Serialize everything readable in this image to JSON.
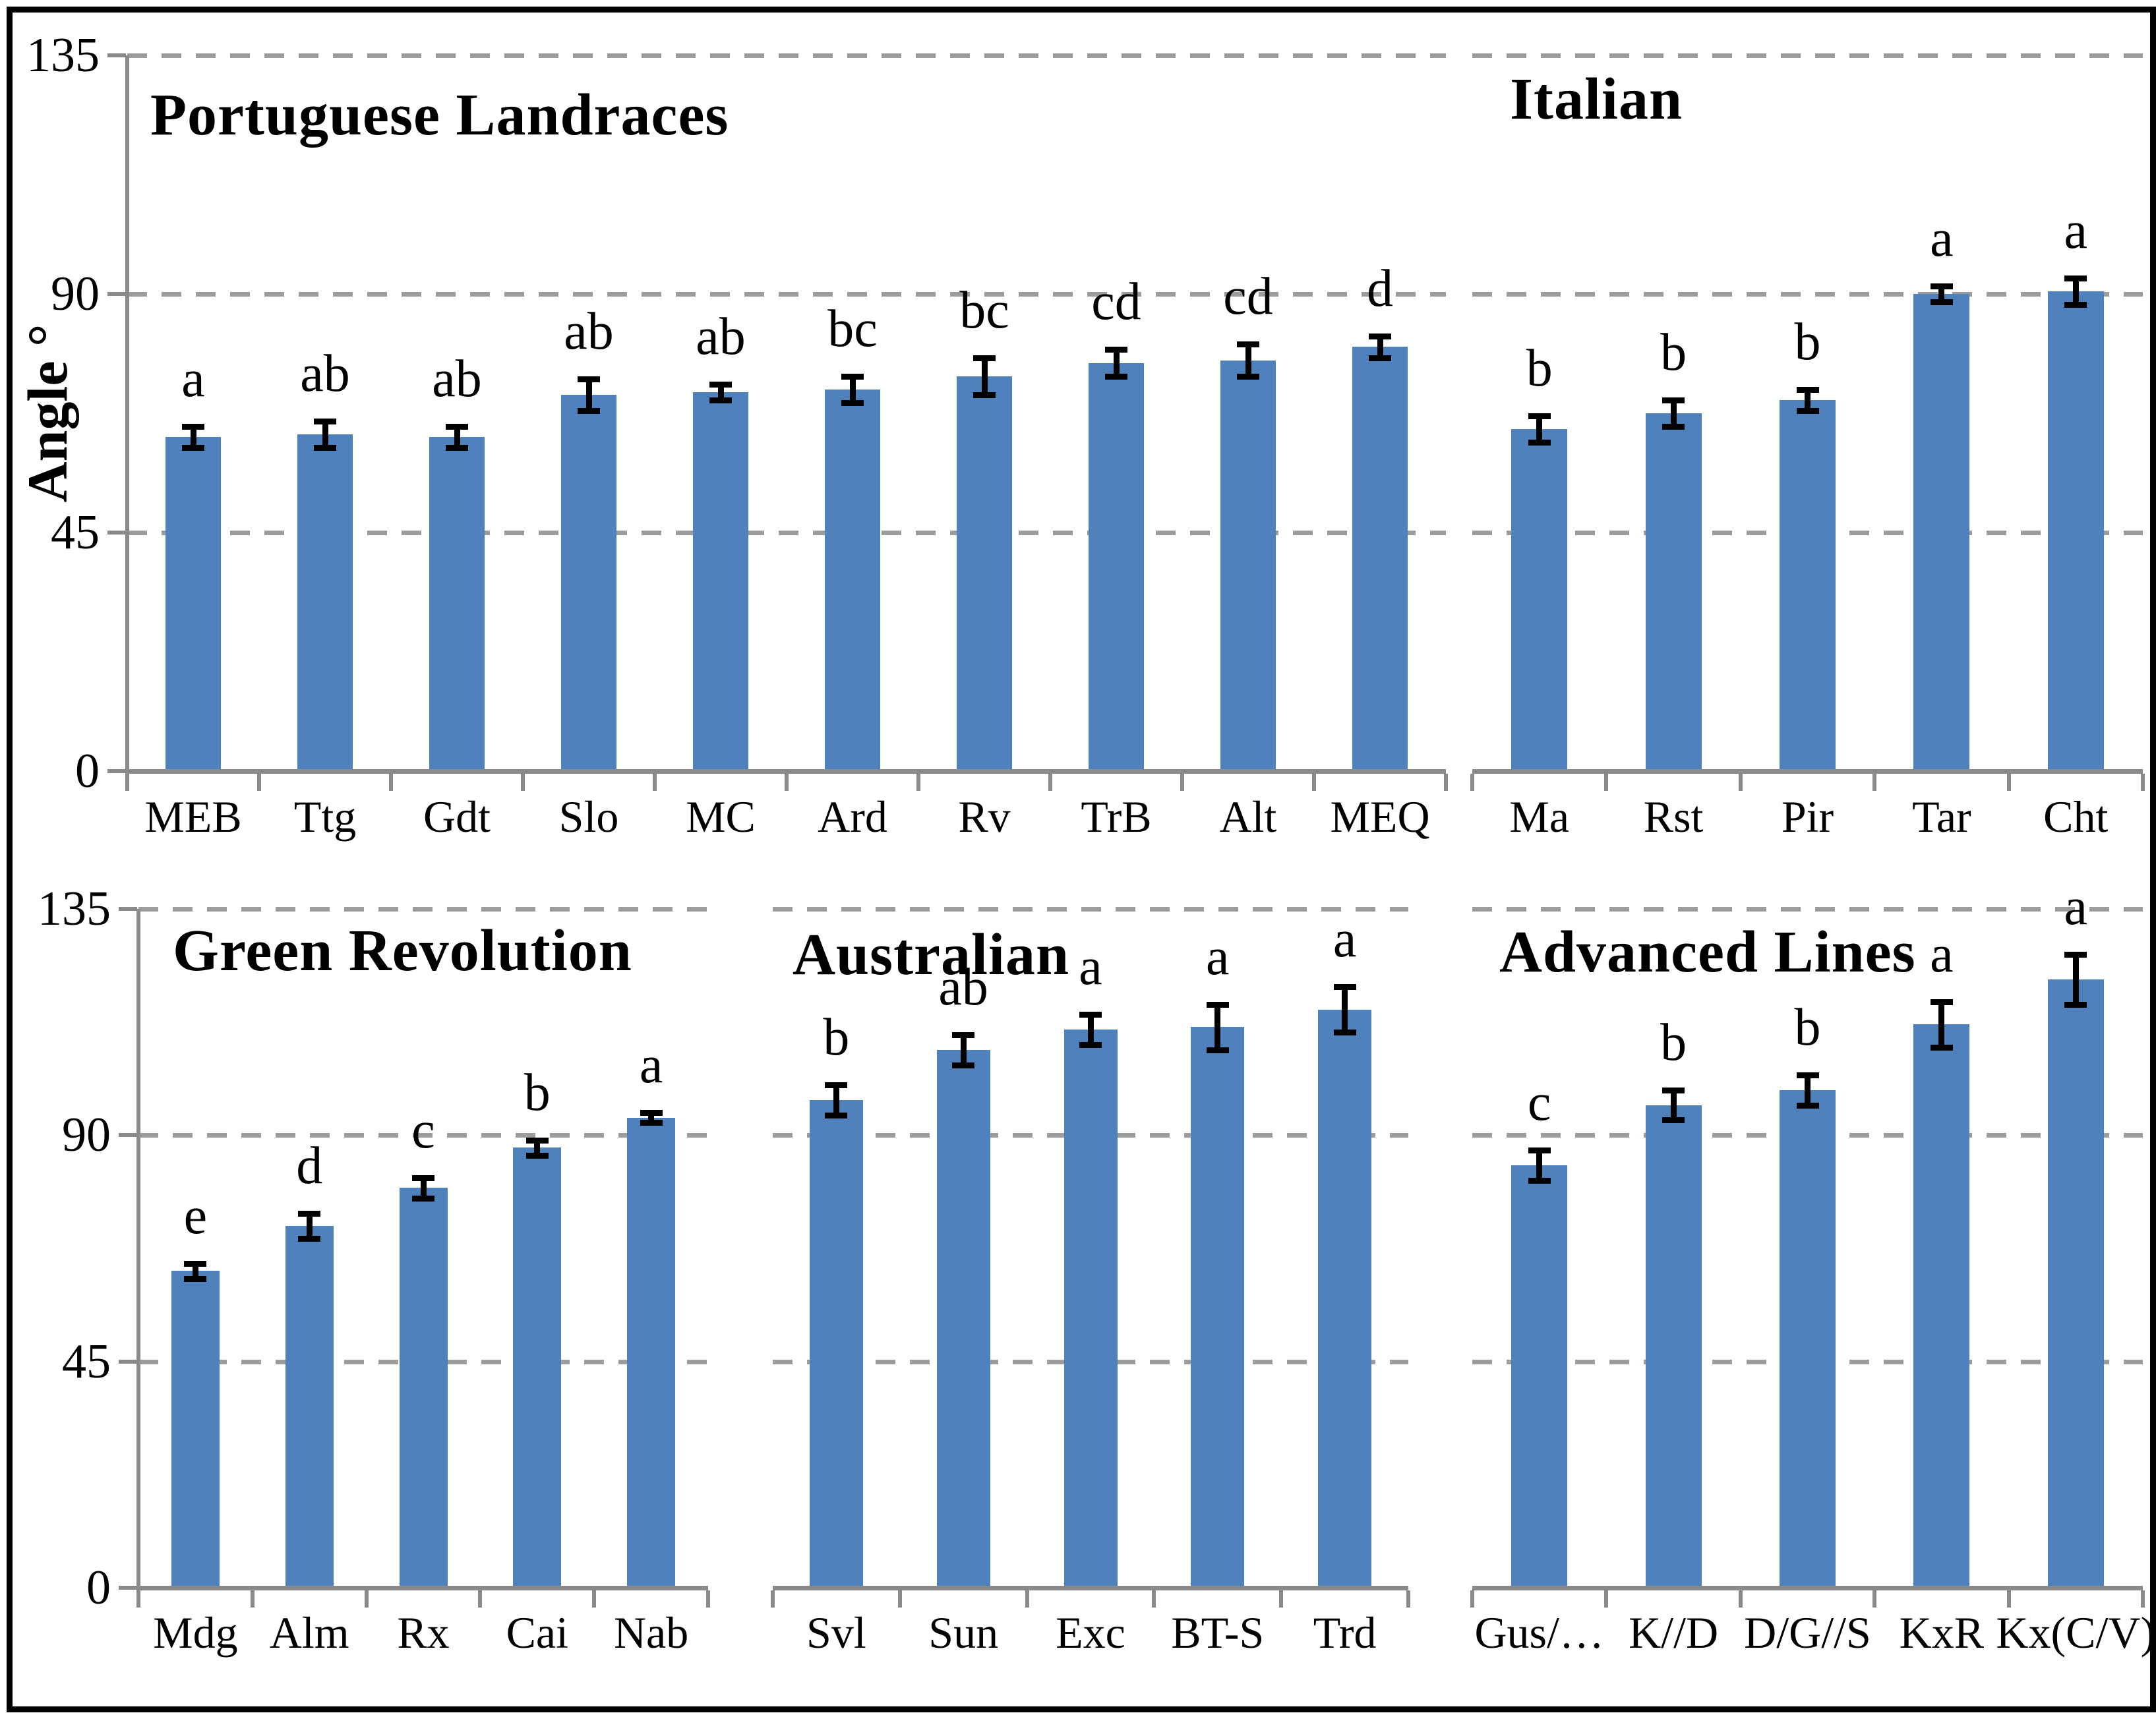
{
  "figure": {
    "y_axis_title": "Angle °",
    "colors": {
      "bar": "#4F81BD",
      "grid": "#9C9C9C",
      "axis": "#8A8A8A",
      "error": "#000000",
      "text": "#000000",
      "border": "#000000",
      "background": "#FFFFFF"
    }
  },
  "chart_data": [
    {
      "id": "portuguese",
      "type": "bar",
      "title": "Portuguese Landraces",
      "categories": [
        "MEB",
        "Ttg",
        "Gdt",
        "Slo",
        "MC",
        "Ard",
        "Rv",
        "TrB",
        "Alt",
        "MEQ"
      ],
      "values": [
        63,
        63.5,
        63,
        71,
        71.5,
        72,
        74.5,
        77,
        77.5,
        80
      ],
      "errors": [
        2,
        2.5,
        2,
        3,
        1.5,
        2.5,
        3.5,
        2.5,
        3,
        2
      ],
      "sig_letters": [
        "a",
        "ab",
        "ab",
        "ab",
        "ab",
        "bc",
        "bc",
        "cd",
        "cd",
        "d"
      ],
      "ylabel": "Angle °",
      "ylim": [
        0,
        135
      ],
      "yticks": [
        0,
        45,
        90,
        135
      ],
      "grid": "dashed",
      "y_tick_labels_visible": true
    },
    {
      "id": "italian",
      "type": "bar",
      "title": "Italian",
      "categories": [
        "Ma",
        "Rst",
        "Pir",
        "Tar",
        "Cht"
      ],
      "values": [
        64.5,
        67.5,
        70,
        90,
        90.5
      ],
      "errors": [
        2.5,
        2.5,
        2,
        1.5,
        2.5
      ],
      "sig_letters": [
        "b",
        "b",
        "b",
        "a",
        "a"
      ],
      "ylim": [
        0,
        135
      ],
      "yticks": [
        0,
        45,
        90,
        135
      ],
      "grid": "dashed",
      "y_tick_labels_visible": false
    },
    {
      "id": "green_revolution",
      "type": "bar",
      "title": "Green Revolution",
      "categories": [
        "Mdg",
        "Alm",
        "Rx",
        "Cai",
        "Nab"
      ],
      "values": [
        63,
        72,
        79.5,
        87.5,
        93.5
      ],
      "errors": [
        1.5,
        2.5,
        2,
        1.5,
        1
      ],
      "sig_letters": [
        "e",
        "d",
        "c",
        "b",
        "a"
      ],
      "ylim": [
        0,
        135
      ],
      "yticks": [
        0,
        45,
        90,
        135
      ],
      "grid": "dashed",
      "y_tick_labels_visible": true
    },
    {
      "id": "australian",
      "type": "bar",
      "title": "Australian",
      "categories": [
        "Svl",
        "Sun",
        "Exc",
        "BT-S",
        "Trd"
      ],
      "values": [
        97,
        107,
        111,
        111.5,
        115
      ],
      "errors": [
        3,
        3,
        3,
        4.5,
        4.5
      ],
      "sig_letters": [
        "b",
        "ab",
        "a",
        "a",
        "a"
      ],
      "ylim": [
        0,
        135
      ],
      "yticks": [
        0,
        45,
        90,
        135
      ],
      "grid": "dashed",
      "y_tick_labels_visible": false
    },
    {
      "id": "advanced_lines",
      "type": "bar",
      "title": "Advanced Lines",
      "categories": [
        "Gus/…",
        "K//D",
        "D/G//S",
        "KxR",
        "Kx(C/V)"
      ],
      "values": [
        84,
        96,
        99,
        112,
        121
      ],
      "errors": [
        3,
        3,
        3,
        4.5,
        5
      ],
      "sig_letters": [
        "c",
        "b",
        "b",
        "a",
        "a"
      ],
      "ylim": [
        0,
        135
      ],
      "yticks": [
        0,
        45,
        90,
        135
      ],
      "grid": "dashed",
      "y_tick_labels_visible": false
    }
  ]
}
